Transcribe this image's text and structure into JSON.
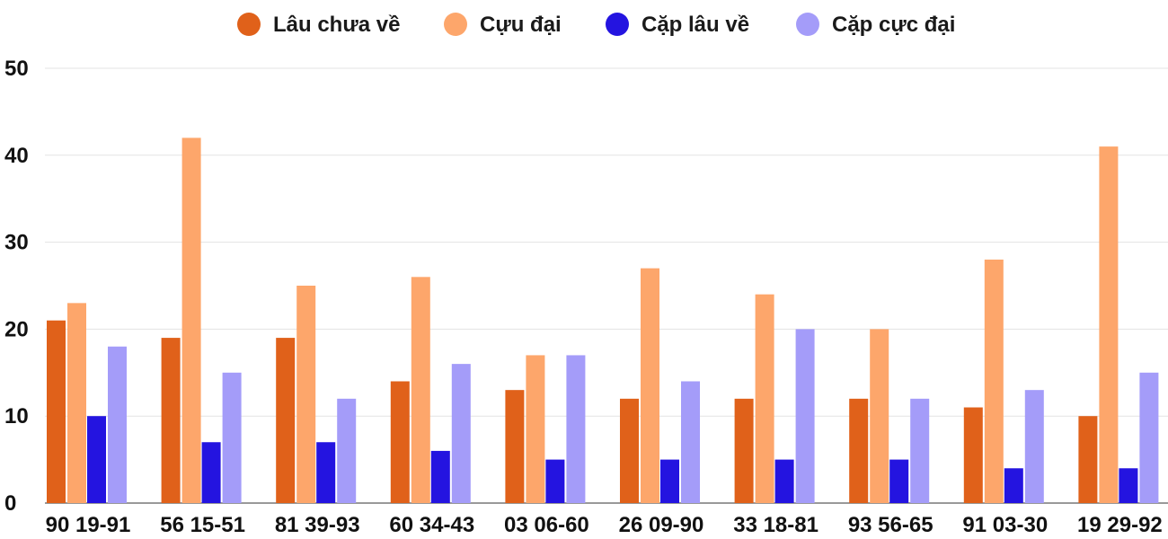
{
  "chart_data": {
    "type": "bar",
    "title": "",
    "xlabel": "",
    "ylabel": "",
    "ylim": [
      0,
      50
    ],
    "yticks": [
      0,
      10,
      20,
      30,
      40,
      50
    ],
    "grid": true,
    "legend_position": "top-center",
    "categories": [
      "90 19-91",
      "56 15-51",
      "81 39-93",
      "60 34-43",
      "03 06-60",
      "26 09-90",
      "33 18-81",
      "93 56-65",
      "91 03-30",
      "19 29-92"
    ],
    "series": [
      {
        "name": "Lâu chưa về",
        "color": "#e0611a",
        "values": [
          21,
          19,
          19,
          14,
          13,
          12,
          12,
          12,
          11,
          10
        ]
      },
      {
        "name": "Cựu đại",
        "color": "#fda66b",
        "values": [
          23,
          42,
          25,
          26,
          17,
          27,
          24,
          20,
          28,
          41
        ]
      },
      {
        "name": "Cặp lâu về",
        "color": "#2414e0",
        "values": [
          10,
          7,
          7,
          6,
          5,
          5,
          5,
          5,
          4,
          4
        ]
      },
      {
        "name": "Cặp cực đại",
        "color": "#a49cf9",
        "values": [
          18,
          15,
          12,
          16,
          17,
          14,
          20,
          12,
          13,
          15
        ]
      }
    ]
  }
}
